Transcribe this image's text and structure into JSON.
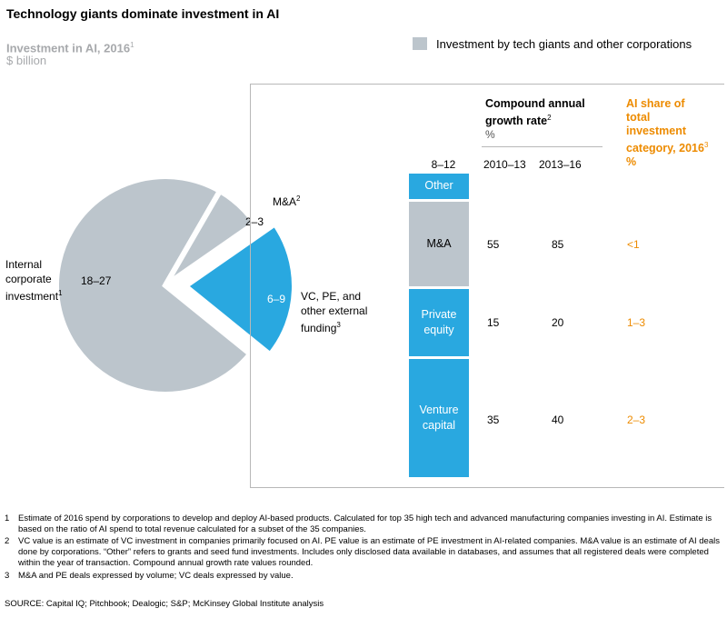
{
  "header": {
    "title": "Technology giants dominate investment in AI",
    "subtitle": "Investment in AI, 2016",
    "subtitle_sup": "1",
    "unit": "$ billion"
  },
  "legend": {
    "label": "Investment by tech giants and other corporations",
    "color": "#bcc5cc"
  },
  "colors": {
    "gray": "#bcc5cc",
    "blue": "#29a8e0",
    "orange": "#ed8b00"
  },
  "chart_data": [
    {
      "type": "pie",
      "slices": [
        {
          "label": "Internal corporate investment",
          "sup": "1",
          "value": "18–27",
          "share": 0.725,
          "color": "#bcc5cc",
          "label_lines": [
            "Internal",
            "corporate",
            "investment"
          ]
        },
        {
          "label": "M&A",
          "sup": "2",
          "value": "2–3",
          "share": 0.07,
          "color": "#bcc5cc",
          "label_lines": [
            "M&A"
          ]
        },
        {
          "label": "VC, PE, and other external funding",
          "sup": "3",
          "value": "6–9",
          "share": 0.205,
          "color": "#29a8e0",
          "exploded": true,
          "label_lines": [
            "VC, PE, and",
            "other external",
            "funding"
          ]
        }
      ]
    },
    {
      "type": "bar",
      "stacked": true,
      "total": "8–12",
      "segments": [
        {
          "name": "Other",
          "lines": [
            "Other"
          ],
          "value": 0.6,
          "color": "#29a8e0"
        },
        {
          "name": "M&A",
          "lines": [
            "M&A"
          ],
          "value": 2.0,
          "color": "#bcc5cc"
        },
        {
          "name": "Private equity",
          "lines": [
            "Private",
            "equity"
          ],
          "value": 1.6,
          "color": "#29a8e0"
        },
        {
          "name": "Venture capital",
          "lines": [
            "Venture",
            "capital"
          ],
          "value": 2.8,
          "color": "#29a8e0"
        }
      ]
    },
    {
      "type": "table",
      "headers": {
        "cagr": "Compound annual growth rate",
        "cagr_lines": [
          "Compound annual",
          "growth rate"
        ],
        "cagr_sup": "2",
        "cagr_unit": "%",
        "col1": "2010–13",
        "col2": "2013–16",
        "share_lines": [
          "AI share of",
          "total",
          "investment",
          "category, 2016"
        ],
        "share_sup": "3",
        "share_unit": "%"
      },
      "rows": [
        {
          "category": "M&A",
          "c2010_13": "55",
          "c2013_16": "85",
          "ai_share": "<1"
        },
        {
          "category": "Private equity",
          "c2010_13": "15",
          "c2013_16": "20",
          "ai_share": "1–3"
        },
        {
          "category": "Venture capital",
          "c2010_13": "35",
          "c2013_16": "40",
          "ai_share": "2–3"
        }
      ]
    }
  ],
  "footnotes": [
    {
      "num": "1",
      "text": "Estimate of 2016 spend by corporations to develop and deploy AI-based products. Calculated for top 35 high tech and advanced manufacturing companies investing in AI. Estimate is based on the ratio of AI spend to total revenue calculated for a subset of the 35 companies."
    },
    {
      "num": "2",
      "text": "VC value is an estimate of VC investment in companies primarily focused on AI. PE value is an estimate of PE investment in AI-related companies. M&A value is an estimate of AI deals done by corporations. “Other” refers to grants and seed fund investments. Includes only disclosed data available in databases, and assumes that all registered deals were completed within the year of transaction. Compound annual growth rate values rounded."
    },
    {
      "num": "3",
      "text": "M&A and PE deals expressed by volume; VC deals expressed by value."
    }
  ],
  "source": "SOURCE:  Capital IQ; Pitchbook; Dealogic; S&P; McKinsey Global Institute analysis"
}
